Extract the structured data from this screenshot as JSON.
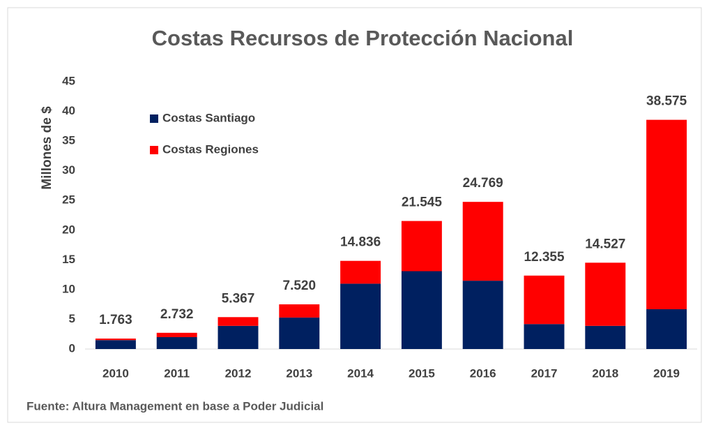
{
  "chart_data": {
    "type": "bar",
    "stacked": true,
    "title": "Costas Recursos de Protección Nacional",
    "y_label": "Millones de $",
    "source": "Fuente: Altura Management en base a Poder Judicial",
    "categories": [
      "2010",
      "2011",
      "2012",
      "2013",
      "2014",
      "2015",
      "2016",
      "2017",
      "2018",
      "2019"
    ],
    "series": [
      {
        "name": "Costas Santiago",
        "color": "#002060",
        "values": [
          1.5,
          2.0,
          3.9,
          5.3,
          11.0,
          13.1,
          11.5,
          4.2,
          3.9,
          6.7
        ]
      },
      {
        "name": "Costas Regiones",
        "color": "#ff0000",
        "values": [
          0.26,
          0.73,
          1.47,
          2.22,
          3.84,
          8.45,
          13.27,
          8.16,
          10.63,
          31.88
        ]
      }
    ],
    "totals": [
      1.763,
      2.732,
      5.367,
      7.52,
      14.836,
      21.545,
      24.769,
      12.355,
      14.527,
      38.575
    ],
    "total_labels": [
      "1.763",
      "2.732",
      "5.367",
      "7.520",
      "14.836",
      "21.545",
      "24.769",
      "12.355",
      "14.527",
      "38.575"
    ],
    "ylim": [
      0,
      45
    ],
    "yticks": [
      0,
      5,
      10,
      15,
      20,
      25,
      30,
      35,
      40,
      45
    ],
    "grid": false,
    "legend": "upper left"
  }
}
